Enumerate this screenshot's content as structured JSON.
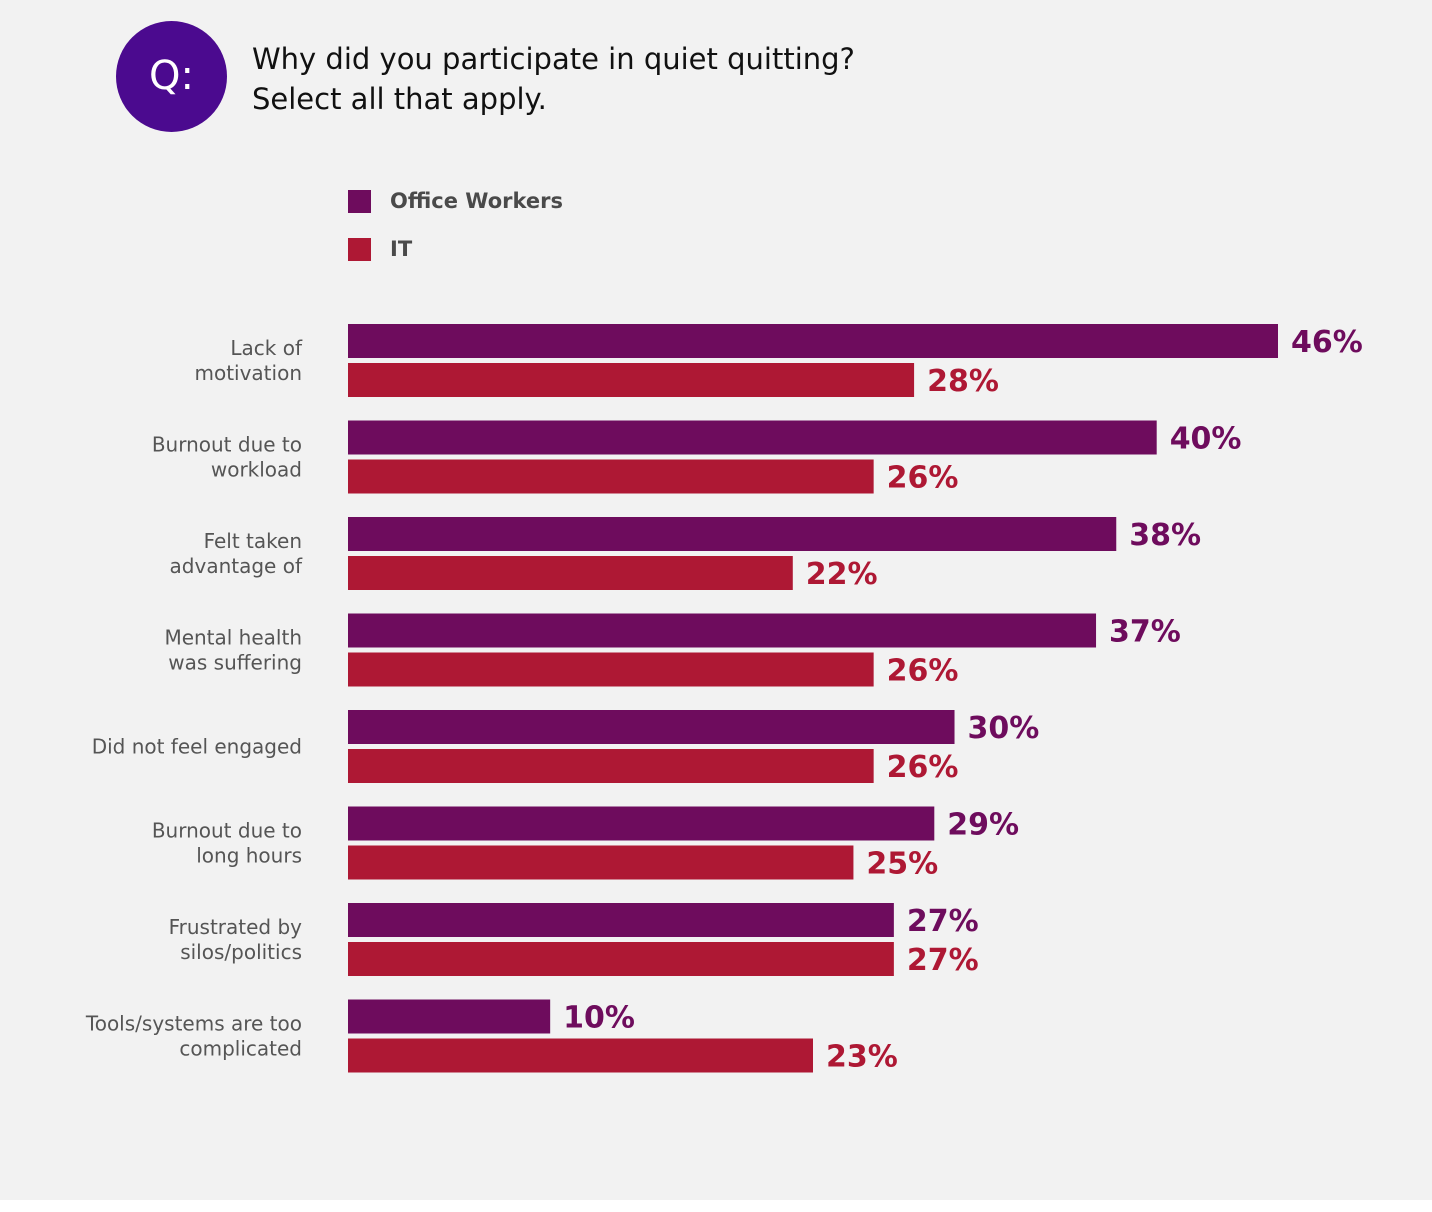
{
  "question": {
    "badge": "Q:",
    "line1": "Why did you participate in quiet quitting?",
    "line2": "Select all that apply."
  },
  "colors": {
    "office_workers": "#6e0c5d",
    "it": "#ae1834",
    "badge": "#4b0a8f"
  },
  "chart_data": {
    "type": "bar",
    "orientation": "horizontal",
    "title": "",
    "xlabel": "",
    "ylabel": "",
    "grid": false,
    "legend_placement": "top-left",
    "xlim": [
      0,
      46
    ],
    "categories": [
      [
        "Lack of",
        "motivation"
      ],
      [
        "Burnout due to",
        "workload"
      ],
      [
        "Felt taken",
        "advantage of"
      ],
      [
        "Mental health",
        "was suffering"
      ],
      [
        "Did not feel engaged"
      ],
      [
        "Burnout due to",
        "long hours"
      ],
      [
        "Frustrated by",
        "silos/politics"
      ],
      [
        "Tools/systems are too",
        "complicated"
      ]
    ],
    "series": [
      {
        "name": "Office Workers",
        "color": "#6e0c5d",
        "values": [
          46,
          40,
          38,
          37,
          30,
          29,
          27,
          10
        ],
        "labels": [
          "46%",
          "40%",
          "38%",
          "37%",
          "30%",
          "29%",
          "27%",
          "10%"
        ]
      },
      {
        "name": "IT",
        "color": "#ae1834",
        "values": [
          28,
          26,
          22,
          26,
          26,
          25,
          27,
          23
        ],
        "labels": [
          "28%",
          "26%",
          "22%",
          "26%",
          "26%",
          "25%",
          "27%",
          "23%"
        ]
      }
    ]
  }
}
